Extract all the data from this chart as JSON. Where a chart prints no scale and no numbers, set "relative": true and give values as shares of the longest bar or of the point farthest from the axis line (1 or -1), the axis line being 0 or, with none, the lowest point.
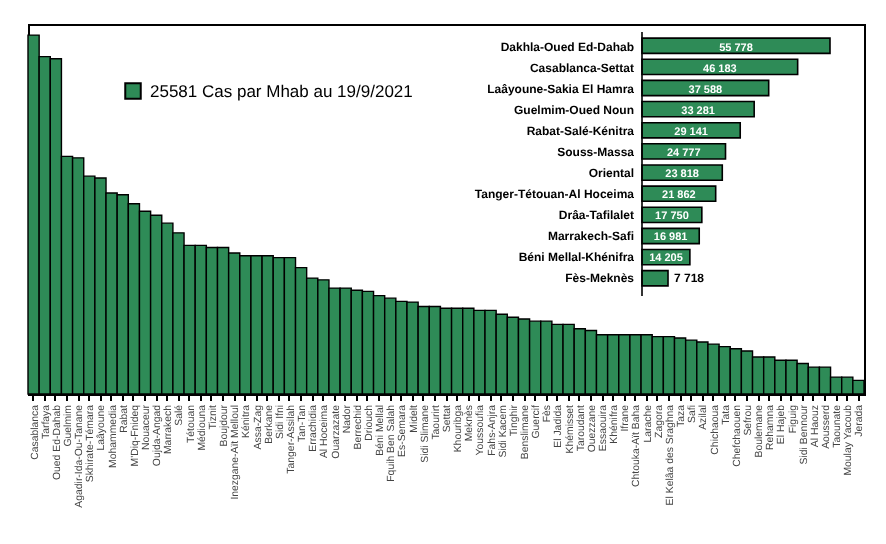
{
  "chart_data": [
    {
      "type": "bar",
      "relative": true,
      "legend": "top",
      "categories": [
        "Casablanca",
        "Tarfaya",
        "Oued Ed-Dahab",
        "Guelmim",
        "Agadir-Ida-Ou-Tanane",
        "Skhirate-Témara",
        "Laâyoune",
        "Mohammedia",
        "Rabat",
        "M'Diq-Fnideq",
        "Nouaceur",
        "Oujda-Angad",
        "Marrakech",
        "Salé",
        "Tétouan",
        "Médiouna",
        "Tiznit",
        "Boujdour",
        "Inezgane-Aït Melloul",
        "Kénitra",
        "Assa-Zag",
        "Berkane",
        "Sidi Ifni",
        "Tanger-Assilah",
        "Tan-Tan",
        "Errachidia",
        "Al Hoceima",
        "Ouarzazate",
        "Nador",
        "Berrechid",
        "Driouch",
        "Béni Mellal",
        "Fquih Ben Salah",
        "Es-Semara",
        "Midelt",
        "Sidi Slimane",
        "Taourirt",
        "Settat",
        "Khouribga",
        "Meknès",
        "Youssoufia",
        "Fahs-Anjra",
        "Sidi Kacem",
        "Tinghir",
        "Benslimane",
        "Guercif",
        "Fès",
        "El Jadida",
        "Khémisset",
        "Taroudant",
        "Ouezzane",
        "Essaouira",
        "Khénifra",
        "Ifrane",
        "Chtouka-Aït Baha",
        "Larache",
        "Zagora",
        "El Kelâa des Sraghna",
        "Taza",
        "Safi",
        "Azilal",
        "Chichaoua",
        "Tata",
        "Chefchaouen",
        "Sefrou",
        "Boulemane",
        "Rehamna",
        "El Hajeb",
        "Figuig",
        "Sidi Bennour",
        "Al Haouz",
        "Aousserd",
        "Taounate",
        "Moulay Yacoub",
        "Jerada"
      ],
      "series": [
        {
          "name": "25581 Cas par Mhab au 19/9/2021",
          "color": "#2e8b57",
          "values": [
            1.0,
            0.94,
            0.934,
            0.662,
            0.658,
            0.607,
            0.602,
            0.56,
            0.555,
            0.53,
            0.509,
            0.498,
            0.476,
            0.449,
            0.414,
            0.414,
            0.408,
            0.408,
            0.393,
            0.385,
            0.385,
            0.385,
            0.38,
            0.38,
            0.352,
            0.323,
            0.318,
            0.295,
            0.295,
            0.289,
            0.286,
            0.274,
            0.267,
            0.258,
            0.256,
            0.244,
            0.244,
            0.239,
            0.239,
            0.239,
            0.233,
            0.233,
            0.222,
            0.214,
            0.209,
            0.203,
            0.203,
            0.194,
            0.194,
            0.182,
            0.177,
            0.165,
            0.165,
            0.165,
            0.165,
            0.165,
            0.16,
            0.16,
            0.156,
            0.15,
            0.145,
            0.139,
            0.132,
            0.126,
            0.12,
            0.103,
            0.103,
            0.094,
            0.094,
            0.085,
            0.075,
            0.075,
            0.047,
            0.047,
            0.038
          ]
        }
      ]
    },
    {
      "type": "bar",
      "orientation": "horizontal",
      "color": "#2e8b57",
      "categories": [
        "Dakhla-Oued Ed-Dahab",
        "Casablanca-Settat",
        "Laâyoune-Sakia El Hamra",
        "Guelmim-Oued Noun",
        "Rabat-Salé-Kénitra",
        "Souss-Massa",
        "Oriental",
        "Tanger-Tétouan-Al Hoceima",
        "Drâa-Tafilalet",
        "Marrakech-Safi",
        "Béni Mellal-Khénifra",
        "Fès-Meknès"
      ],
      "values": [
        55778,
        46183,
        37588,
        33281,
        29141,
        24777,
        23818,
        21862,
        17750,
        16981,
        14205,
        7718
      ],
      "value_labels": [
        "55 778",
        "46 183",
        "37 588",
        "33 281",
        "29 141",
        "24 777",
        "23 818",
        "21 862",
        "17 750",
        "16 981",
        "14 205",
        "7 718"
      ]
    }
  ]
}
